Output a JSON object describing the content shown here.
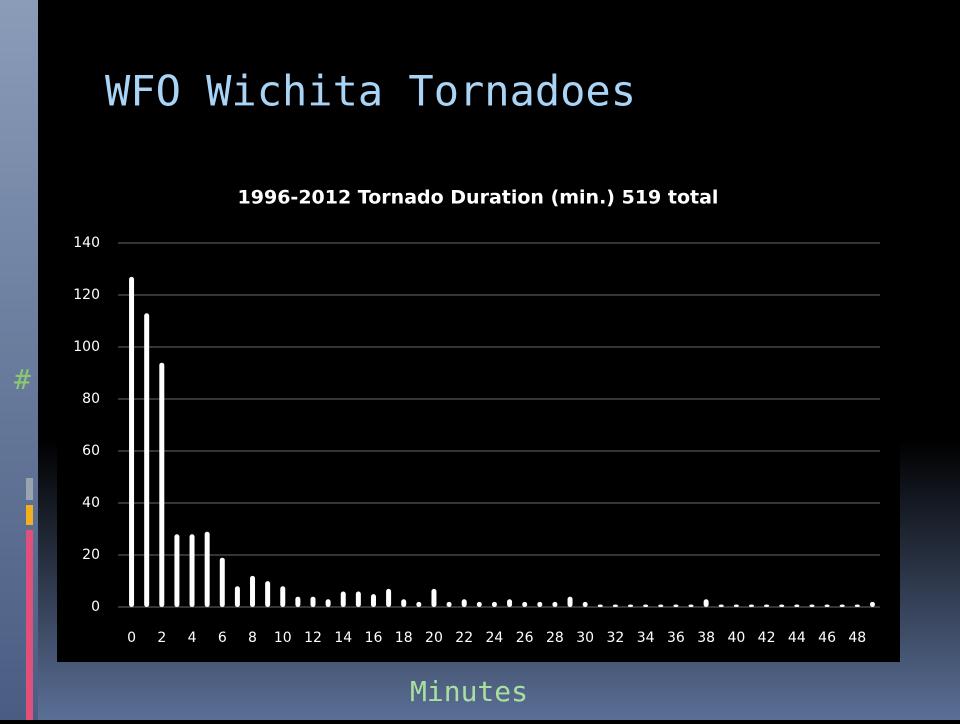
{
  "slide": {
    "title": "WFO Wichita Tornadoes",
    "bullet": "#",
    "footer": "Minutes"
  },
  "chart_data": {
    "type": "bar",
    "title": "1996-2012 Tornado Duration (min.) 519 total",
    "categories": [
      0,
      null,
      2,
      null,
      4,
      null,
      6,
      null,
      8,
      null,
      10,
      null,
      12,
      null,
      14,
      null,
      16,
      null,
      18,
      null,
      20,
      null,
      22,
      null,
      24,
      null,
      26,
      null,
      28,
      null,
      30,
      null,
      32,
      null,
      34,
      null,
      36,
      null,
      38,
      null,
      40,
      null,
      42,
      null,
      44,
      null,
      46,
      null,
      48,
      null
    ],
    "values": [
      126,
      112,
      93,
      27,
      27,
      28,
      18,
      7,
      11,
      9,
      7,
      3,
      3,
      2,
      5,
      5,
      4,
      6,
      2,
      1,
      6,
      1,
      2,
      1,
      1,
      2,
      1,
      1,
      1,
      3,
      1,
      0,
      0,
      0,
      0,
      0,
      0,
      0,
      2,
      0,
      0,
      0,
      0,
      0,
      0,
      0,
      0,
      0,
      0,
      1
    ],
    "color": "#ffffff",
    "ylim": [
      0,
      140
    ],
    "yticks": [
      0,
      20,
      40,
      60,
      80,
      100,
      120,
      140
    ],
    "grid": true
  }
}
